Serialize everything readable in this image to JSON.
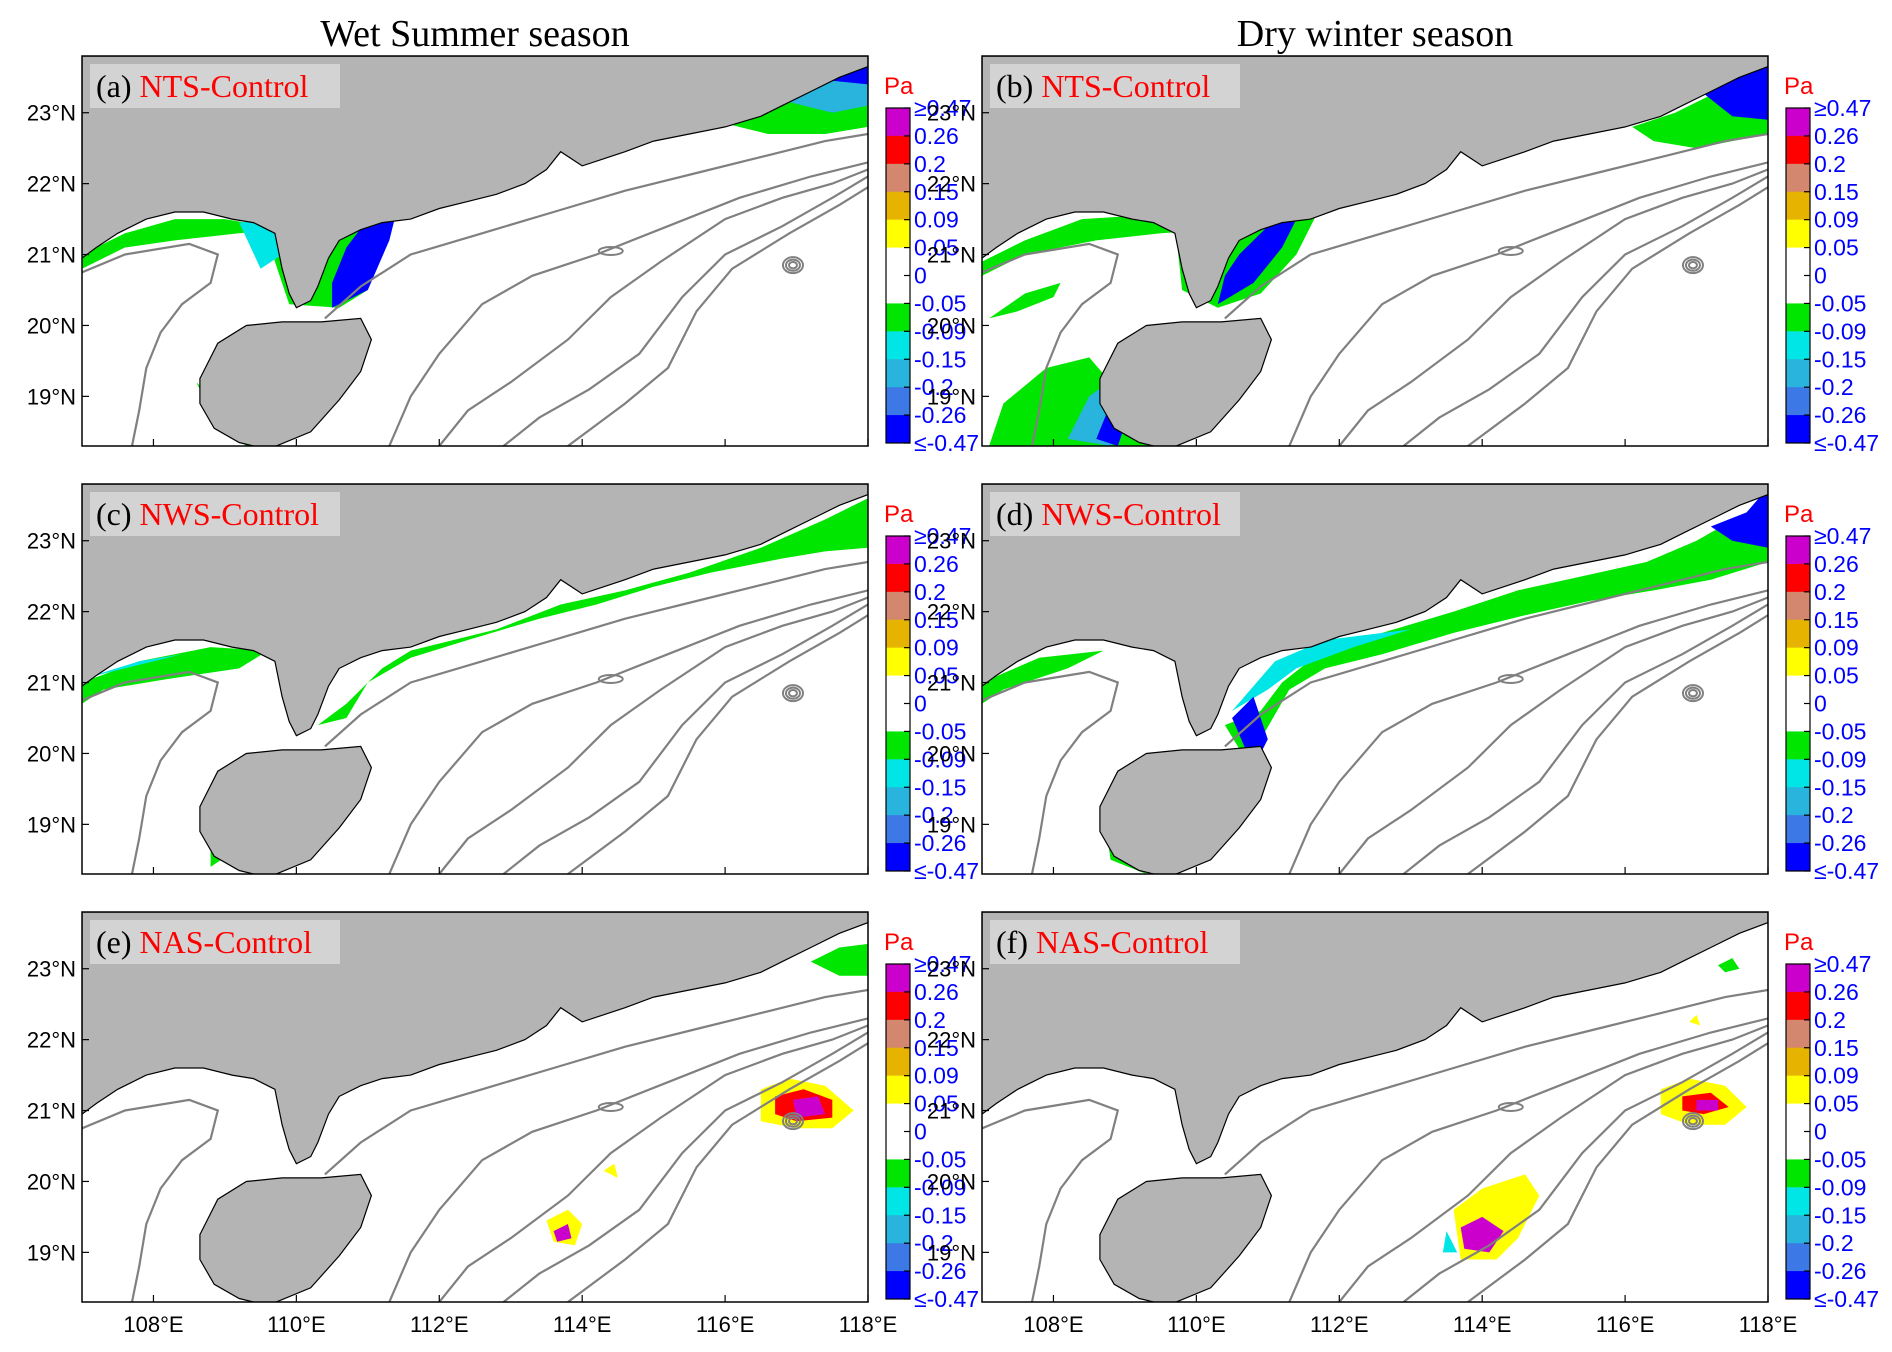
{
  "column_titles": [
    "Wet Summer season",
    "Dry winter season"
  ],
  "panels": [
    {
      "id": "a",
      "tag": "(a) ",
      "label": "NTS-Control",
      "season": "summer",
      "scenario": "NTS"
    },
    {
      "id": "b",
      "tag": "(b) ",
      "label": "NTS-Control",
      "season": "winter",
      "scenario": "NTS"
    },
    {
      "id": "c",
      "tag": "(c) ",
      "label": "NWS-Control",
      "season": "summer",
      "scenario": "NWS"
    },
    {
      "id": "d",
      "tag": "(d) ",
      "label": "NWS-Control",
      "season": "winter",
      "scenario": "NWS"
    },
    {
      "id": "e",
      "tag": "(e) ",
      "label": "NAS-Control",
      "season": "summer",
      "scenario": "NAS"
    },
    {
      "id": "f",
      "tag": "(f) ",
      "label": "NAS-Control",
      "season": "winter",
      "scenario": "NAS"
    }
  ],
  "axes": {
    "lon_range": [
      107,
      118
    ],
    "lat_range": [
      18.3,
      23.8
    ],
    "lon_ticks": [
      "108°E",
      "110°E",
      "112°E",
      "114°E",
      "116°E",
      "118°E"
    ],
    "lon_tick_values": [
      108,
      110,
      112,
      114,
      116,
      118
    ],
    "lat_ticks": [
      "23°N",
      "22°N",
      "21°N",
      "20°N",
      "19°N"
    ],
    "lat_tick_values": [
      23,
      22,
      21,
      20,
      19
    ]
  },
  "colorbar": {
    "unit": "Pa",
    "labels": [
      "≥0.47",
      "0.26",
      "0.2",
      "0.15",
      "0.09",
      "0.05",
      "0",
      "-0.05",
      "-0.09",
      "-0.15",
      "-0.2",
      "-0.26",
      "≤-0.47"
    ],
    "colors": [
      "#cc00cc",
      "#ff0000",
      "#d2876e",
      "#e6b400",
      "#ffff00",
      "#ffffff",
      "#ffffff",
      "#00e600",
      "#00e6e6",
      "#28b4dc",
      "#3c78e6",
      "#0000ff"
    ]
  },
  "colors": {
    "land": "#b4b4b4",
    "isobath": "#808080",
    "label_bg": "#d3d3d3",
    "label_text": "#ff0000",
    "tick_text": "#0000ff"
  }
}
